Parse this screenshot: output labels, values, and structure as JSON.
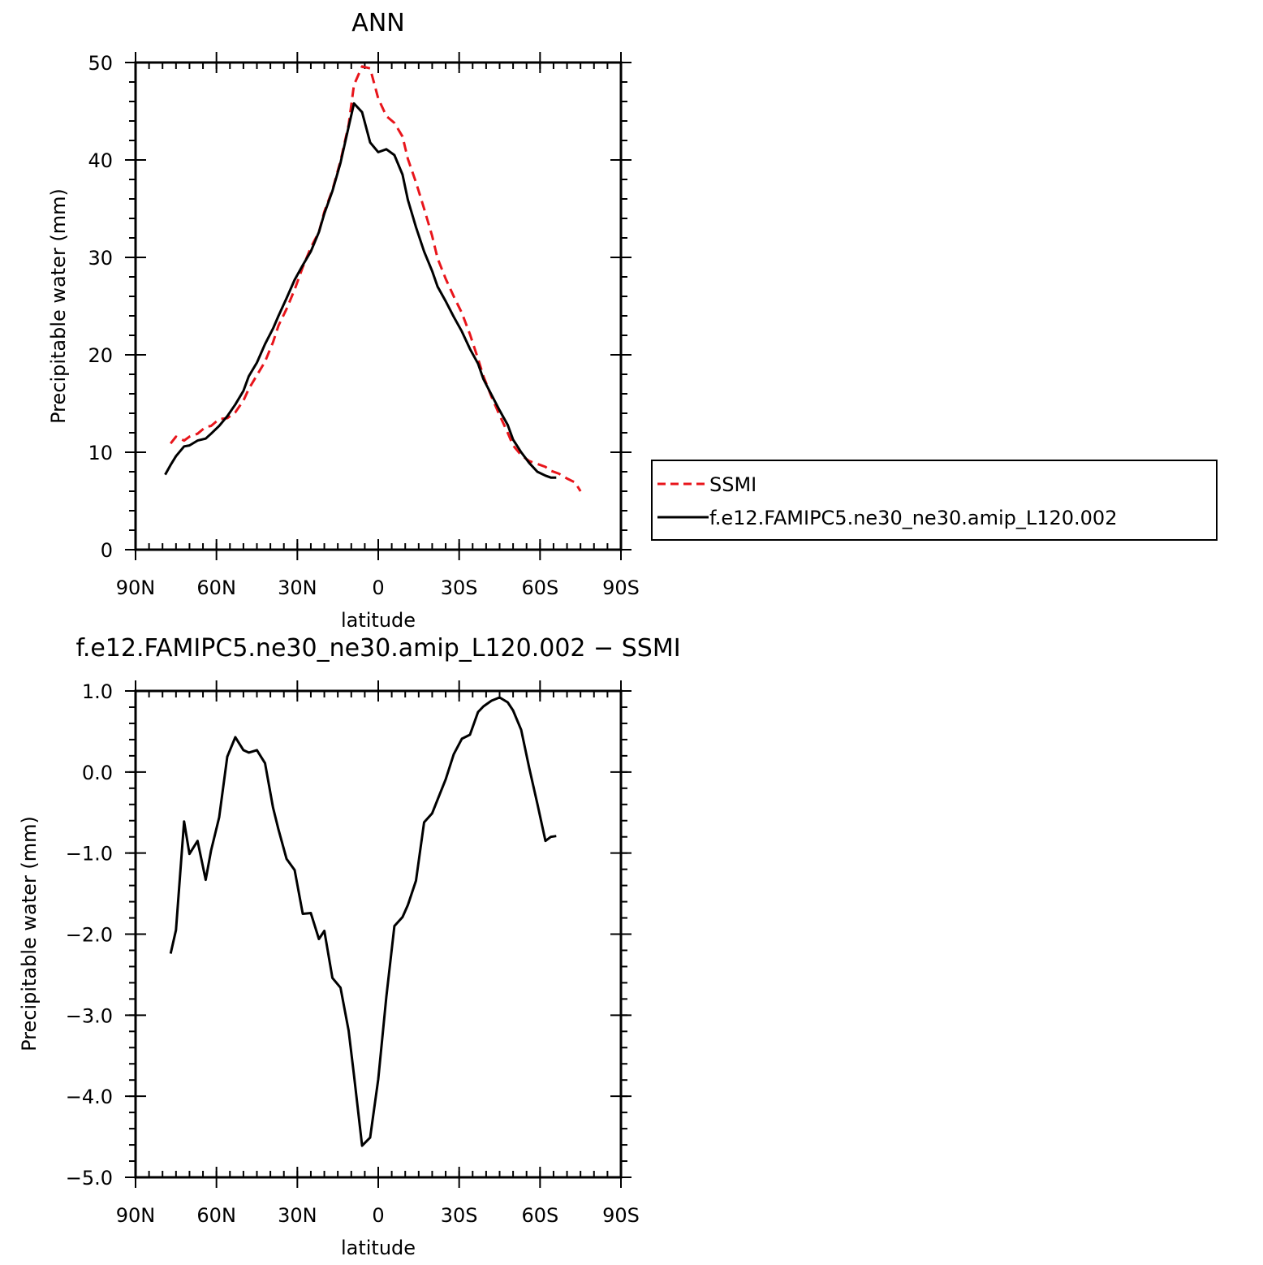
{
  "chart_data": [
    {
      "type": "line",
      "title": "ANN",
      "xlabel": "latitude",
      "ylabel": "Precipitable water (mm)",
      "xlim": [
        90,
        -90
      ],
      "ylim": [
        0,
        50
      ],
      "xticks": [
        {
          "value": 90,
          "label": "90N"
        },
        {
          "value": 60,
          "label": "60N"
        },
        {
          "value": 30,
          "label": "30N"
        },
        {
          "value": 0,
          "label": "0"
        },
        {
          "value": -30,
          "label": "30S"
        },
        {
          "value": -60,
          "label": "60S"
        },
        {
          "value": -90,
          "label": "90S"
        }
      ],
      "yticks": [
        {
          "value": 0,
          "label": "0"
        },
        {
          "value": 10,
          "label": "10"
        },
        {
          "value": 20,
          "label": "20"
        },
        {
          "value": 30,
          "label": "30"
        },
        {
          "value": 40,
          "label": "40"
        },
        {
          "value": 50,
          "label": "50"
        }
      ],
      "legend_position": "right",
      "series": [
        {
          "name": "SSMI",
          "color": "#e8151b",
          "style": "dashed",
          "x": [
            77,
            75,
            72,
            70,
            67,
            64,
            62,
            59,
            56,
            53,
            50,
            48,
            45,
            42,
            39,
            37,
            34,
            31,
            28,
            25,
            22,
            20,
            17,
            14,
            11,
            9,
            6,
            3,
            0,
            -3,
            -6,
            -9,
            -11,
            -14,
            -17,
            -20,
            -22,
            -25,
            -28,
            -31,
            -34,
            -37,
            -39,
            -42,
            -45,
            -48,
            -50,
            -53,
            -56,
            -59,
            -62,
            -64,
            -67,
            -70,
            -73,
            -75
          ],
          "y": [
            10.9,
            11.6,
            11.2,
            11.6,
            11.9,
            12.6,
            12.7,
            13.4,
            13.5,
            14.1,
            15.3,
            16.5,
            17.9,
            19.3,
            21.3,
            23.0,
            24.7,
            26.7,
            29.0,
            31.0,
            32.6,
            34.7,
            36.9,
            39.9,
            43.6,
            47.7,
            49.6,
            49.4,
            46.3,
            44.5,
            43.8,
            42.4,
            40.1,
            37.7,
            35.0,
            32.2,
            29.9,
            27.8,
            26.0,
            24.3,
            22.1,
            19.6,
            17.8,
            15.7,
            13.8,
            12.0,
            10.7,
            9.7,
            9.1,
            8.8,
            8.5,
            8.1,
            7.8,
            7.3,
            6.9,
            6.0
          ]
        },
        {
          "name": "f.e12.FAMIPC5.ne30_ne30.amip_L120.002",
          "color": "#000000",
          "style": "solid",
          "x": [
            79,
            77,
            75,
            72,
            70,
            67,
            64,
            62,
            59,
            56,
            53,
            50,
            48,
            45,
            42,
            39,
            37,
            34,
            31,
            28,
            25,
            22,
            20,
            17,
            14,
            11,
            9,
            6,
            3,
            0,
            -3,
            -6,
            -9,
            -11,
            -14,
            -17,
            -20,
            -22,
            -25,
            -28,
            -31,
            -34,
            -37,
            -39,
            -42,
            -45,
            -48,
            -50,
            -53,
            -56,
            -59,
            -62,
            -64,
            -66
          ],
          "y": [
            7.7,
            8.7,
            9.6,
            10.6,
            10.7,
            11.2,
            11.4,
            11.9,
            12.7,
            13.7,
            14.9,
            16.3,
            17.8,
            19.2,
            21.1,
            22.7,
            24.0,
            25.8,
            27.7,
            29.2,
            30.6,
            32.6,
            34.5,
            36.8,
            39.7,
            43.4,
            45.8,
            44.9,
            41.8,
            40.8,
            41.1,
            40.5,
            38.5,
            35.9,
            33.1,
            30.6,
            28.6,
            27.0,
            25.5,
            23.9,
            22.4,
            20.6,
            19.1,
            17.5,
            15.9,
            14.3,
            12.8,
            11.3,
            10.0,
            8.9,
            8.0,
            7.6,
            7.4,
            7.4
          ]
        }
      ]
    },
    {
      "type": "line",
      "title": "f.e12.FAMIPC5.ne30_ne30.amip_L120.002 − SSMI",
      "xlabel": "latitude",
      "ylabel": "Precipitable water (mm)",
      "xlim": [
        90,
        -90
      ],
      "ylim": [
        -5.0,
        1.0
      ],
      "xticks": [
        {
          "value": 90,
          "label": "90N"
        },
        {
          "value": 60,
          "label": "60N"
        },
        {
          "value": 30,
          "label": "30N"
        },
        {
          "value": 0,
          "label": "0"
        },
        {
          "value": -30,
          "label": "30S"
        },
        {
          "value": -60,
          "label": "60S"
        },
        {
          "value": -90,
          "label": "90S"
        }
      ],
      "yticks": [
        {
          "value": 1.0,
          "label": "1.0"
        },
        {
          "value": 0.0,
          "label": "0.0"
        },
        {
          "value": -1.0,
          "label": "−1.0"
        },
        {
          "value": -2.0,
          "label": "−2.0"
        },
        {
          "value": -3.0,
          "label": "−3.0"
        },
        {
          "value": -4.0,
          "label": "−4.0"
        },
        {
          "value": -5.0,
          "label": "−5.0"
        }
      ],
      "series": [
        {
          "color": "#000000",
          "style": "solid",
          "x": [
            77,
            75,
            72,
            70,
            67,
            64,
            62,
            59,
            56,
            53,
            50,
            48,
            45,
            42,
            39,
            37,
            34,
            31,
            28,
            25,
            22,
            20,
            17,
            14,
            11,
            9,
            6,
            3,
            0,
            -3,
            -6,
            -9,
            -11,
            -14,
            -17,
            -20,
            -22,
            -25,
            -28,
            -31,
            -34,
            -37,
            -39,
            -42,
            -45,
            -48,
            -50,
            -53,
            -56,
            -59,
            -62,
            -64,
            -66
          ],
          "y": [
            -2.24,
            -1.95,
            -0.61,
            -1.01,
            -0.85,
            -1.33,
            -0.97,
            -0.56,
            0.19,
            0.43,
            0.27,
            0.24,
            0.27,
            0.11,
            -0.44,
            -0.71,
            -1.07,
            -1.21,
            -1.75,
            -1.74,
            -2.06,
            -1.96,
            -2.54,
            -2.66,
            -3.19,
            -3.74,
            -4.61,
            -4.51,
            -3.79,
            -2.77,
            -1.9,
            -1.79,
            -1.64,
            -1.34,
            -0.62,
            -0.51,
            -0.34,
            -0.09,
            0.22,
            0.41,
            0.46,
            0.74,
            0.81,
            0.88,
            0.92,
            0.86,
            0.76,
            0.52,
            0.05,
            -0.39,
            -0.85,
            -0.8,
            -0.79
          ]
        }
      ]
    }
  ]
}
